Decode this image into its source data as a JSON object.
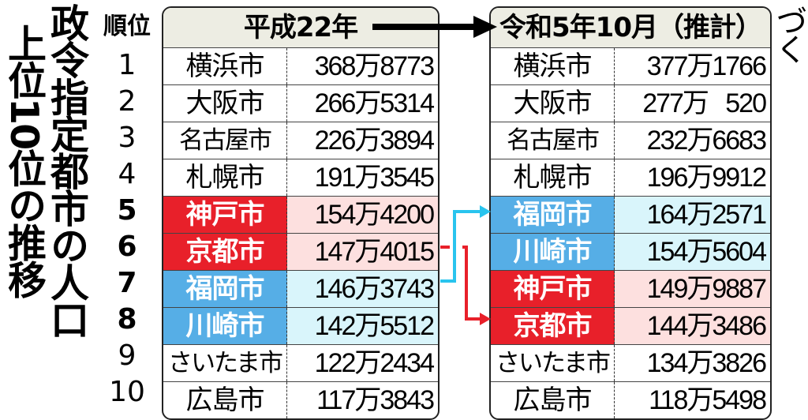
{
  "title_line1": "政令指定都市の人口",
  "title_line2": "上位10位の推移",
  "note": "※単位は人。国勢調査などに基づく",
  "rank_header": "順位",
  "colors": {
    "rising": "#56aee6",
    "falling": "#e8202a",
    "rising_arrow": "#29c4ee",
    "header_bg": "#ededE3"
  },
  "chart_data": {
    "type": "table",
    "ranks": [
      "1",
      "2",
      "3",
      "4",
      "5",
      "6",
      "7",
      "8",
      "9",
      "10"
    ],
    "tables": [
      {
        "header": "平成22年",
        "rows": [
          {
            "city": "横浜市",
            "pop": "368万8773"
          },
          {
            "city": "大阪市",
            "pop": "266万5314"
          },
          {
            "city": "名古屋市",
            "pop": "226万3894"
          },
          {
            "city": "札幌市",
            "pop": "191万3545"
          },
          {
            "city": "神戸市",
            "pop": "154万4200",
            "highlight": "red"
          },
          {
            "city": "京都市",
            "pop": "147万4015",
            "highlight": "red"
          },
          {
            "city": "福岡市",
            "pop": "146万3743",
            "highlight": "blue"
          },
          {
            "city": "川崎市",
            "pop": "142万5512",
            "highlight": "blue"
          },
          {
            "city": "さいたま市",
            "pop": "122万2434"
          },
          {
            "city": "広島市",
            "pop": "117万3843"
          }
        ]
      },
      {
        "header": "令和5年10月（推計）",
        "rows": [
          {
            "city": "横浜市",
            "pop": "377万1766"
          },
          {
            "city": "大阪市",
            "pop": "277万   520"
          },
          {
            "city": "名古屋市",
            "pop": "232万6683"
          },
          {
            "city": "札幌市",
            "pop": "196万9912"
          },
          {
            "city": "福岡市",
            "pop": "164万2571",
            "highlight": "blue"
          },
          {
            "city": "川崎市",
            "pop": "154万5604",
            "highlight": "blue"
          },
          {
            "city": "神戸市",
            "pop": "149万9887",
            "highlight": "red"
          },
          {
            "city": "京都市",
            "pop": "144万3486",
            "highlight": "red"
          },
          {
            "city": "さいたま市",
            "pop": "134万3826"
          },
          {
            "city": "広島市",
            "pop": "118万5498"
          }
        ]
      }
    ]
  }
}
